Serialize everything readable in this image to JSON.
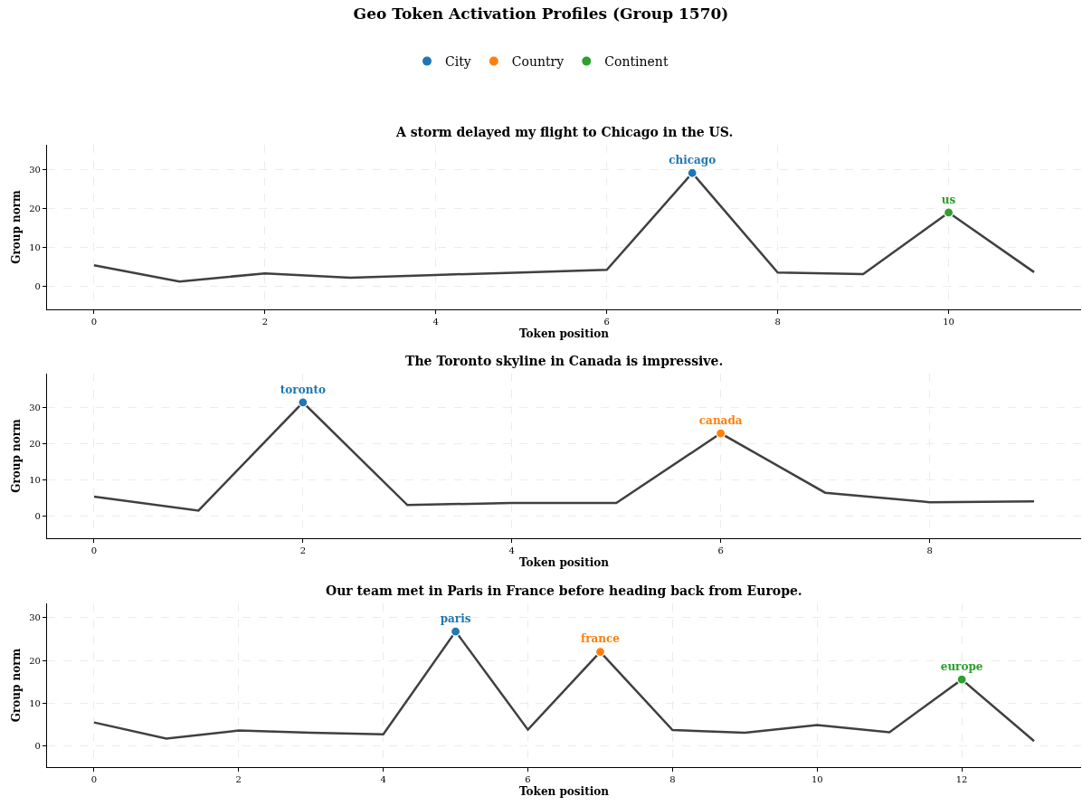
{
  "chart_data": [
    {
      "type": "line",
      "title": "Geo Token Activation Profiles (Group 1570)",
      "subtitle": "A storm delayed my flight to Chicago in the US.",
      "xlabel": "Token position",
      "ylabel": "Group norm",
      "legend": "top",
      "grid": true,
      "line_style": "solid",
      "x": [
        0,
        1,
        2,
        3,
        4,
        5,
        6,
        7,
        8,
        9,
        10,
        11
      ],
      "xlim": [
        -0.55,
        11.55
      ],
      "xticks": [
        0,
        2,
        4,
        6,
        8,
        10
      ],
      "ylim": [
        -6,
        36.5
      ],
      "yticks": [
        0,
        10,
        20,
        30
      ],
      "series": [
        {
          "color": "#404040",
          "values": [
            5.4,
            1.2,
            3.3,
            2.2,
            2.9,
            3.5,
            4.2,
            29.2,
            3.5,
            3.1,
            19,
            3.6
          ]
        },
        {
          "type": "scatter",
          "marker": "circle",
          "name": "City",
          "color": "#1f77b4",
          "x": [
            7
          ],
          "values": [
            29.2
          ],
          "value_labels": [
            "chicago"
          ]
        },
        {
          "type": "scatter",
          "marker": "circle",
          "name": "Continent",
          "color": "#2ca02c",
          "x": [
            10
          ],
          "values": [
            19
          ],
          "value_labels": [
            "us"
          ]
        }
      ]
    },
    {
      "type": "line",
      "title": "The Toronto skyline in Canada is impressive.",
      "xlabel": "Token position",
      "ylabel": "Group norm",
      "legend": "top",
      "grid": true,
      "line_style": "solid",
      "x": [
        0,
        1,
        2,
        3,
        4,
        5,
        6,
        7,
        8,
        9
      ],
      "xlim": [
        -0.45,
        9.45
      ],
      "xticks": [
        0,
        2,
        4,
        6,
        8
      ],
      "ylim": [
        -6,
        39.2
      ],
      "yticks": [
        0,
        10,
        20,
        30
      ],
      "series": [
        {
          "color": "#404040",
          "values": [
            5.4,
            1.6,
            31.3,
            3.1,
            3.7,
            3.7,
            22.8,
            6.5,
            3.9,
            4.1
          ]
        },
        {
          "type": "scatter",
          "marker": "circle",
          "name": "City",
          "color": "#1f77b4",
          "x": [
            2
          ],
          "values": [
            31.3
          ],
          "value_labels": [
            "toronto"
          ]
        },
        {
          "type": "scatter",
          "marker": "circle",
          "name": "Country",
          "color": "#ff7f0e",
          "x": [
            6
          ],
          "values": [
            22.8
          ],
          "value_labels": [
            "canada"
          ]
        }
      ]
    },
    {
      "type": "line",
      "title": "Our team met in Paris in France before heading back from Europe.",
      "xlabel": "Token position",
      "ylabel": "Group norm",
      "legend": "top",
      "grid": true,
      "line_style": "solid",
      "x": [
        0,
        1,
        2,
        3,
        4,
        5,
        6,
        7,
        8,
        9,
        10,
        11,
        12,
        13
      ],
      "xlim": [
        -0.65,
        13.65
      ],
      "xticks": [
        0,
        2,
        4,
        6,
        8,
        10,
        12
      ],
      "ylim": [
        -5.1,
        33.4
      ],
      "yticks": [
        0,
        10,
        20,
        30
      ],
      "series": [
        {
          "color": "#404040",
          "values": [
            5.4,
            1.6,
            3.5,
            3.0,
            2.6,
            26.8,
            3.7,
            22,
            3.6,
            3.0,
            4.8,
            3.1,
            15.5,
            1.0
          ]
        },
        {
          "type": "scatter",
          "marker": "circle",
          "name": "City",
          "color": "#1f77b4",
          "x": [
            5
          ],
          "values": [
            26.8
          ],
          "value_labels": [
            "paris"
          ]
        },
        {
          "type": "scatter",
          "marker": "circle",
          "name": "Country",
          "color": "#ff7f0e",
          "x": [
            7
          ],
          "values": [
            22
          ],
          "value_labels": [
            "france"
          ]
        },
        {
          "type": "scatter",
          "marker": "circle",
          "name": "Continent",
          "color": "#2ca02c",
          "x": [
            12
          ],
          "values": [
            15.5
          ],
          "value_labels": [
            "europe"
          ]
        }
      ]
    }
  ]
}
